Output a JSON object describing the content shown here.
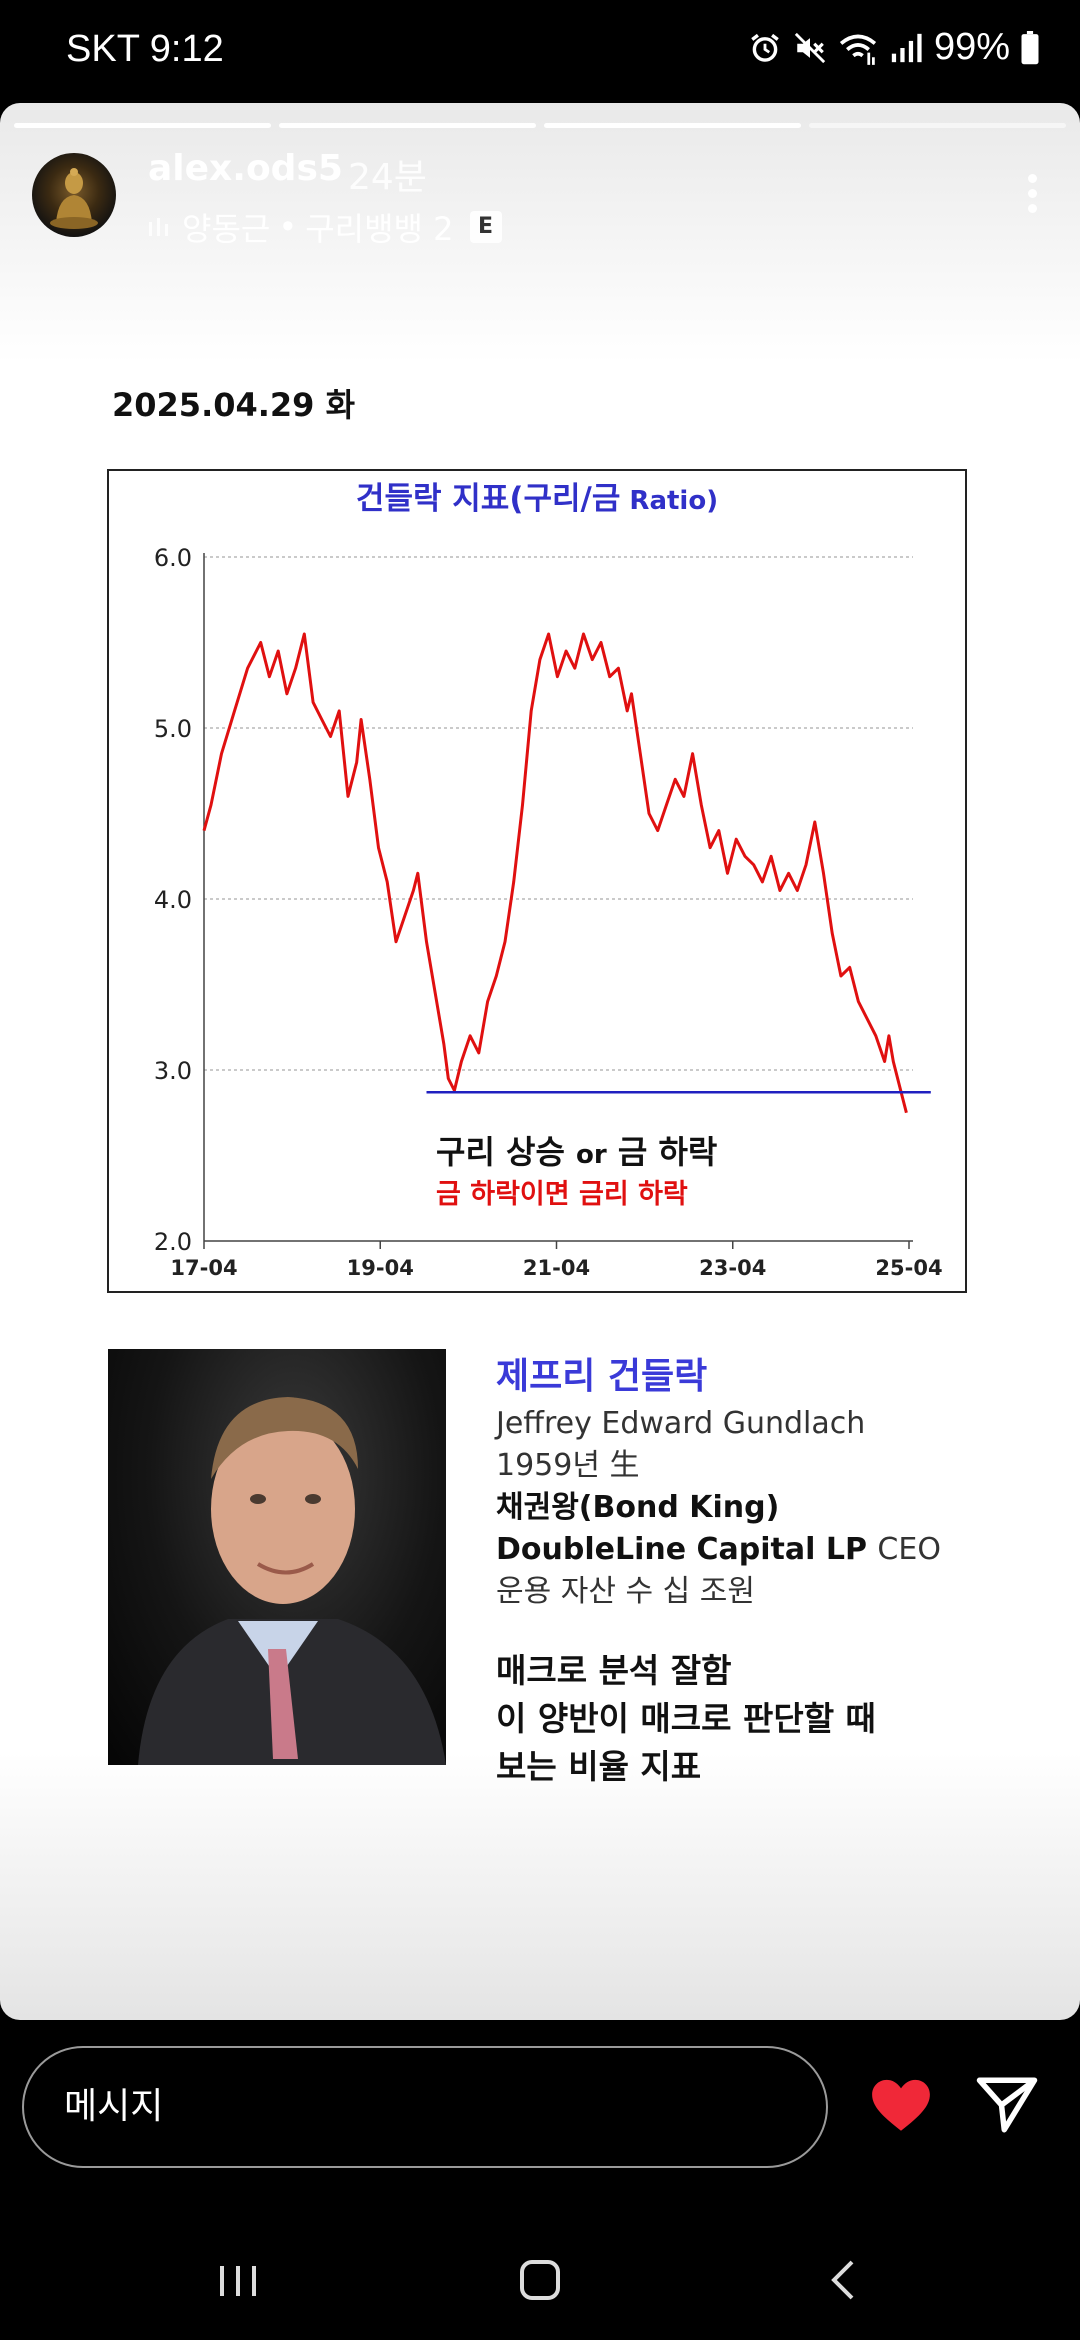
{
  "status_bar": {
    "carrier": "SKT",
    "time": "9:12",
    "battery": "99%",
    "icons": [
      "alarm-icon",
      "mute-icon",
      "wifi-icon",
      "signal-icon",
      "battery-icon"
    ]
  },
  "story": {
    "progress_segments": 4,
    "progress_done": 3,
    "username": "alex.ods5",
    "time_ago": "24분",
    "music": {
      "artist": "양동근",
      "separator": "•",
      "title": "구리뱅뱅 2",
      "badge": "E"
    }
  },
  "post": {
    "date": "2025.04.29 화",
    "chart_annotation_main": "구리 상승",
    "chart_annotation_or": "or",
    "chart_annotation_main2": "금 하락",
    "chart_annotation_sub": "금 하락이면 금리 하락",
    "bio": {
      "name": "제프리 건들락",
      "full_name": "Jeffrey Edward Gundlach",
      "born": "1959년 生",
      "title": "채권왕(Bond King)",
      "company": "DoubleLine Capital LP",
      "role": "CEO",
      "aum": "운용 자산 수 십 조원",
      "note1": "매크로 분석 잘함",
      "note2": "이 양반이 매크로 판단할 때",
      "note3": "보는 비율 지표"
    }
  },
  "chart_data": {
    "type": "line",
    "title_main": "건들락 지표(구리/금",
    "title_suffix": " Ratio)",
    "x_ticks": [
      "17-04",
      "19-04",
      "21-04",
      "23-04",
      "25-04"
    ],
    "y_ticks": [
      "2.0",
      "3.0",
      "4.0",
      "5.0",
      "6.0"
    ],
    "ylim": [
      2.0,
      6.0
    ],
    "xlim": [
      2017.25,
      2025.33
    ],
    "grid": true,
    "series": [
      {
        "color": "#e01010",
        "points": [
          [
            2017.25,
            4.4
          ],
          [
            2017.33,
            4.55
          ],
          [
            2017.45,
            4.85
          ],
          [
            2017.6,
            5.1
          ],
          [
            2017.75,
            5.35
          ],
          [
            2017.9,
            5.5
          ],
          [
            2018.0,
            5.3
          ],
          [
            2018.1,
            5.45
          ],
          [
            2018.2,
            5.2
          ],
          [
            2018.3,
            5.35
          ],
          [
            2018.4,
            5.55
          ],
          [
            2018.5,
            5.15
          ],
          [
            2018.6,
            5.05
          ],
          [
            2018.7,
            4.95
          ],
          [
            2018.8,
            5.1
          ],
          [
            2018.9,
            4.6
          ],
          [
            2019.0,
            4.8
          ],
          [
            2019.05,
            5.05
          ],
          [
            2019.15,
            4.7
          ],
          [
            2019.25,
            4.3
          ],
          [
            2019.35,
            4.1
          ],
          [
            2019.45,
            3.75
          ],
          [
            2019.55,
            3.9
          ],
          [
            2019.65,
            4.05
          ],
          [
            2019.7,
            4.15
          ],
          [
            2019.8,
            3.75
          ],
          [
            2019.9,
            3.45
          ],
          [
            2020.0,
            3.15
          ],
          [
            2020.05,
            2.95
          ],
          [
            2020.12,
            2.88
          ],
          [
            2020.2,
            3.05
          ],
          [
            2020.3,
            3.2
          ],
          [
            2020.4,
            3.1
          ],
          [
            2020.5,
            3.4
          ],
          [
            2020.6,
            3.55
          ],
          [
            2020.7,
            3.75
          ],
          [
            2020.8,
            4.1
          ],
          [
            2020.9,
            4.55
          ],
          [
            2021.0,
            5.1
          ],
          [
            2021.1,
            5.4
          ],
          [
            2021.2,
            5.55
          ],
          [
            2021.3,
            5.3
          ],
          [
            2021.4,
            5.45
          ],
          [
            2021.5,
            5.35
          ],
          [
            2021.6,
            5.55
          ],
          [
            2021.7,
            5.4
          ],
          [
            2021.8,
            5.5
          ],
          [
            2021.9,
            5.3
          ],
          [
            2022.0,
            5.35
          ],
          [
            2022.1,
            5.1
          ],
          [
            2022.15,
            5.2
          ],
          [
            2022.25,
            4.85
          ],
          [
            2022.35,
            4.5
          ],
          [
            2022.45,
            4.4
          ],
          [
            2022.55,
            4.55
          ],
          [
            2022.65,
            4.7
          ],
          [
            2022.75,
            4.6
          ],
          [
            2022.85,
            4.85
          ],
          [
            2022.95,
            4.55
          ],
          [
            2023.05,
            4.3
          ],
          [
            2023.15,
            4.4
          ],
          [
            2023.25,
            4.15
          ],
          [
            2023.35,
            4.35
          ],
          [
            2023.45,
            4.25
          ],
          [
            2023.55,
            4.2
          ],
          [
            2023.65,
            4.1
          ],
          [
            2023.75,
            4.25
          ],
          [
            2023.85,
            4.05
          ],
          [
            2023.95,
            4.15
          ],
          [
            2024.05,
            4.05
          ],
          [
            2024.15,
            4.2
          ],
          [
            2024.25,
            4.45
          ],
          [
            2024.35,
            4.15
          ],
          [
            2024.45,
            3.8
          ],
          [
            2024.55,
            3.55
          ],
          [
            2024.65,
            3.6
          ],
          [
            2024.75,
            3.4
          ],
          [
            2024.85,
            3.3
          ],
          [
            2024.95,
            3.2
          ],
          [
            2025.05,
            3.05
          ],
          [
            2025.1,
            3.2
          ],
          [
            2025.15,
            3.05
          ],
          [
            2025.25,
            2.85
          ],
          [
            2025.3,
            2.75
          ]
        ]
      },
      {
        "color": "#2020c0",
        "points": [
          [
            2019.8,
            2.87
          ],
          [
            2025.58,
            2.87
          ]
        ]
      }
    ]
  },
  "message_bar": {
    "placeholder": "메시지"
  }
}
